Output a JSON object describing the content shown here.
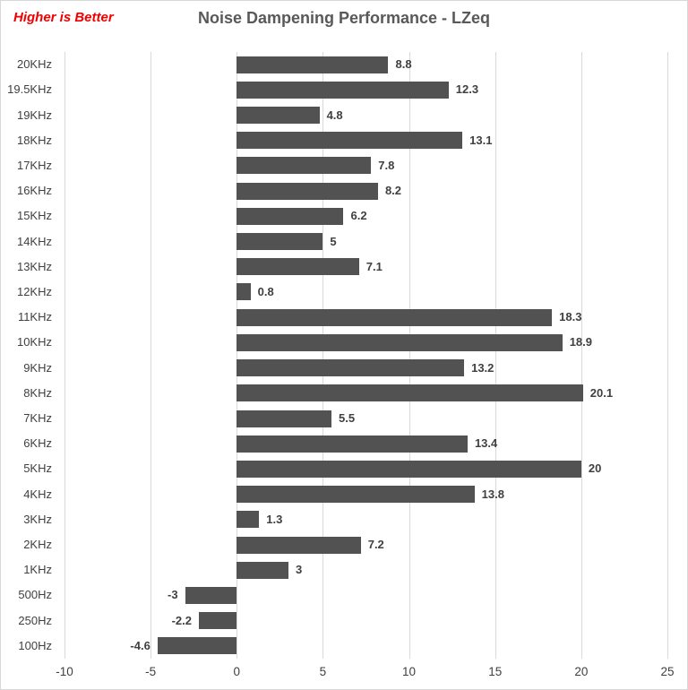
{
  "header": {
    "note": "Higher is Better",
    "note_color": "#f00000",
    "title": "Noise Dampening Performance - LZeq",
    "title_color": "#595959"
  },
  "chart_data": {
    "type": "bar",
    "orientation": "horizontal",
    "title": "Noise Dampening Performance - LZeq",
    "annotation": "Higher is Better",
    "categories": [
      "20KHz",
      "19.5KHz",
      "19KHz",
      "18KHz",
      "17KHz",
      "16KHz",
      "15KHz",
      "14KHz",
      "13KHz",
      "12KHz",
      "11KHz",
      "10KHz",
      "9KHz",
      "8KHz",
      "7KHz",
      "6KHz",
      "5KHz",
      "4KHz",
      "3KHz",
      "2KHz",
      "1KHz",
      "500Hz",
      "250Hz",
      "100Hz"
    ],
    "values": [
      8.8,
      12.3,
      4.8,
      13.1,
      7.8,
      8.2,
      6.2,
      5,
      7.1,
      0.8,
      18.3,
      18.9,
      13.2,
      20.1,
      5.5,
      13.4,
      20,
      13.8,
      1.3,
      7.2,
      3,
      -3,
      -2.2,
      -4.6
    ],
    "xlabel": "",
    "ylabel": "",
    "xlim": [
      -10,
      25
    ],
    "xticks": [
      -10,
      -5,
      0,
      5,
      10,
      15,
      20,
      25
    ],
    "grid": true,
    "legend": false,
    "bar_color": "#525252",
    "gridline_color": "#d9d9d9",
    "text_color": "#404040"
  }
}
